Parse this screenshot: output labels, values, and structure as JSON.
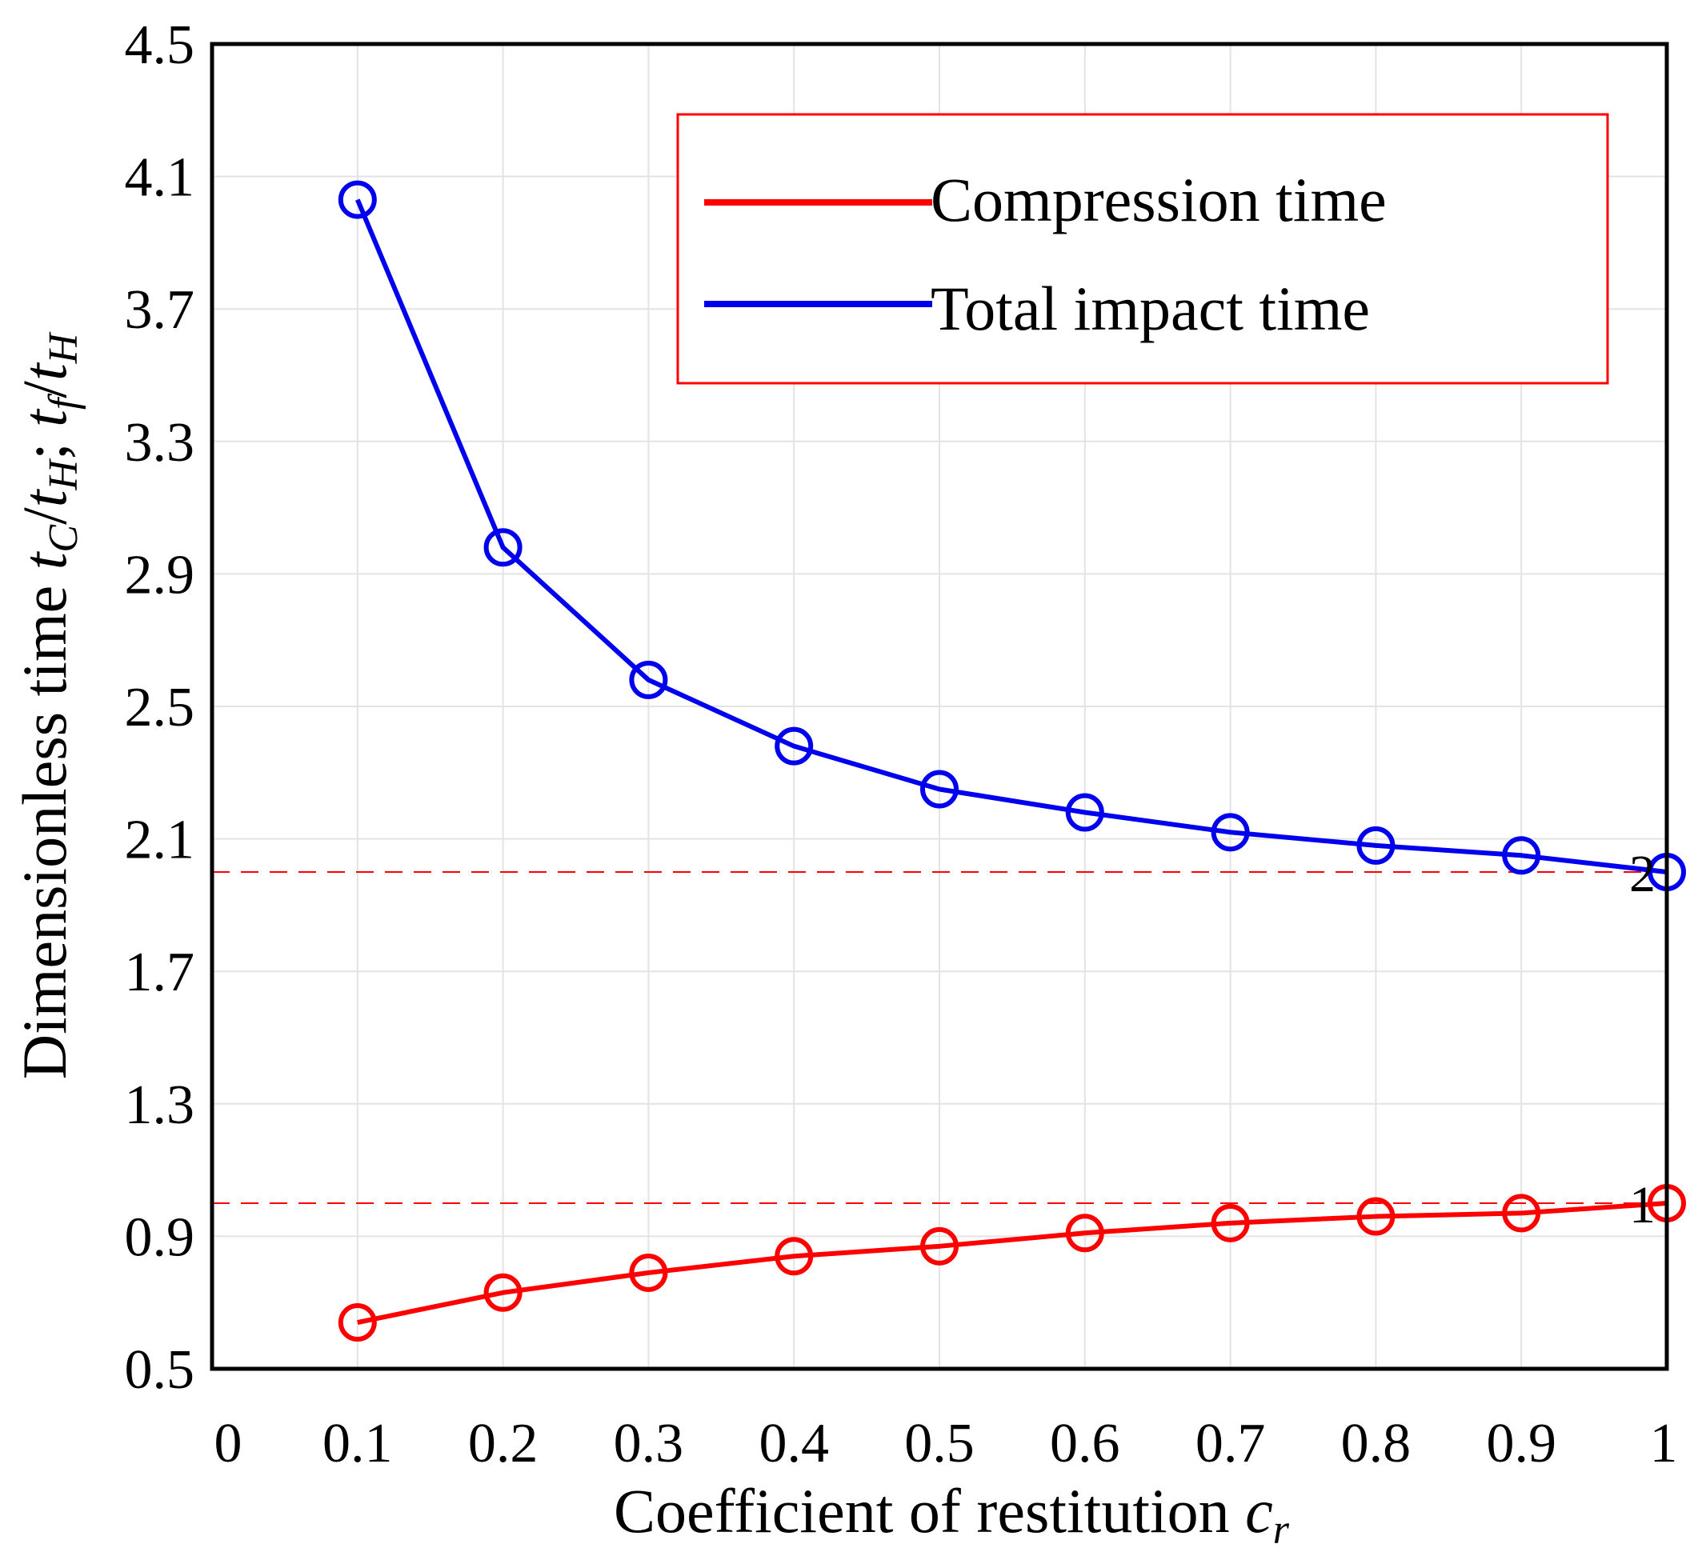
{
  "chart_data": {
    "type": "line",
    "xlabel": "Coefficient of restitution",
    "xlabel_var": "c",
    "xlabel_sub": "r",
    "ylabel": {
      "prefix": "Dimensionless time ",
      "t1": "t",
      "s1": "C",
      "m1": "/",
      "t2": "t",
      "s2": "H",
      "sep": "; ",
      "t3": "t",
      "s3": "f",
      "m2": "/",
      "t4": "t",
      "s4": "H"
    },
    "xlim": [
      0,
      1
    ],
    "ylim": [
      0.5,
      4.5
    ],
    "xticks": [
      "0",
      "0.1",
      "0.2",
      "0.3",
      "0.4",
      "0.5",
      "0.6",
      "0.7",
      "0.8",
      "0.9",
      "1"
    ],
    "yticks": [
      "0.5",
      "0.9",
      "1.3",
      "1.7",
      "2.1",
      "2.5",
      "2.9",
      "3.3",
      "3.7",
      "4.1",
      "4.5"
    ],
    "x": [
      0.1,
      0.2,
      0.3,
      0.4,
      0.5,
      0.6,
      0.7,
      0.8,
      0.9,
      1.0
    ],
    "grid": true,
    "legend_position": "top-right",
    "series": [
      {
        "name": "Compression time",
        "color": "#ff0000",
        "marker": "open-circle",
        "values": [
          0.64,
          0.73,
          0.79,
          0.84,
          0.87,
          0.91,
          0.94,
          0.96,
          0.97,
          1.0
        ]
      },
      {
        "name": "Total impact time",
        "color": "#0000ee",
        "marker": "open-circle",
        "values": [
          4.03,
          2.98,
          2.58,
          2.38,
          2.25,
          2.18,
          2.12,
          2.08,
          2.05,
          2.0
        ]
      }
    ],
    "reference_lines": [
      {
        "y": 1,
        "label": "1",
        "color": "#ff0000",
        "style": "dashed"
      },
      {
        "y": 2,
        "label": "2",
        "color": "#ff0000",
        "style": "dashed"
      }
    ],
    "colors": {
      "axes": "#000000",
      "grid": "#e3e3e3",
      "legend_border": "#ff0000"
    }
  }
}
